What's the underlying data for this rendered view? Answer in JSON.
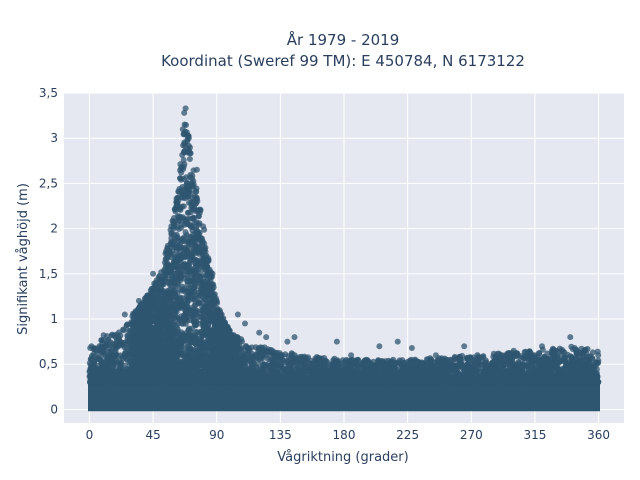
{
  "chart_data": {
    "type": "scatter",
    "title": "År 1979 - 2019",
    "subtitle": "Koordinat (Sweref 99 TM): E 450784, N 6173122",
    "xlabel": "Vågriktning (grader)",
    "ylabel": "Signifikant våghöjd (m)",
    "xlim": [
      -18,
      378
    ],
    "ylim": [
      -0.15,
      3.5
    ],
    "x_ticks": [
      0,
      45,
      90,
      135,
      180,
      225,
      270,
      315,
      360
    ],
    "x_tick_labels": [
      "0",
      "45",
      "90",
      "135",
      "180",
      "225",
      "270",
      "315",
      "360"
    ],
    "y_ticks": [
      0,
      0.5,
      1,
      1.5,
      2,
      2.5,
      3,
      3.5
    ],
    "y_tick_labels": [
      "0",
      "0,5",
      "1",
      "1,5",
      "2",
      "2,5",
      "3",
      "3,5"
    ],
    "grid": true,
    "marker_color": "#2f5670",
    "background_color": "#e5e8f0",
    "envelope": {
      "description_points_x": [
        0,
        10,
        20,
        30,
        40,
        50,
        55,
        60,
        65,
        68,
        70,
        72,
        75,
        80,
        85,
        90,
        95,
        100,
        110,
        120,
        135,
        150,
        180,
        225,
        270,
        315,
        340,
        360
      ],
      "upper_y": [
        0.7,
        0.8,
        0.85,
        1.05,
        1.25,
        1.5,
        1.8,
        2.2,
        2.8,
        3.3,
        3.05,
        2.85,
        2.6,
        2.1,
        1.6,
        1.2,
        1.0,
        0.85,
        0.75,
        0.7,
        0.65,
        0.6,
        0.55,
        0.55,
        0.6,
        0.65,
        0.7,
        0.65
      ]
    },
    "outliers": [
      {
        "x": 68,
        "y": 3.33
      },
      {
        "x": 67,
        "y": 3.28
      },
      {
        "x": 66,
        "y": 3.1
      },
      {
        "x": 76,
        "y": 2.65
      },
      {
        "x": 87,
        "y": 1.5
      },
      {
        "x": 90,
        "y": 1.2
      },
      {
        "x": 105,
        "y": 1.05
      },
      {
        "x": 110,
        "y": 0.95
      },
      {
        "x": 120,
        "y": 0.85
      },
      {
        "x": 125,
        "y": 0.8
      },
      {
        "x": 140,
        "y": 0.75
      },
      {
        "x": 145,
        "y": 0.8
      },
      {
        "x": 175,
        "y": 0.75
      },
      {
        "x": 185,
        "y": 0.6
      },
      {
        "x": 205,
        "y": 0.7
      },
      {
        "x": 218,
        "y": 0.75
      },
      {
        "x": 228,
        "y": 0.68
      },
      {
        "x": 245,
        "y": 0.6
      },
      {
        "x": 265,
        "y": 0.7
      },
      {
        "x": 300,
        "y": 0.65
      },
      {
        "x": 320,
        "y": 0.7
      },
      {
        "x": 340,
        "y": 0.8
      },
      {
        "x": 350,
        "y": 0.65
      },
      {
        "x": 10,
        "y": 0.82
      },
      {
        "x": 25,
        "y": 1.05
      },
      {
        "x": 35,
        "y": 1.2
      },
      {
        "x": 45,
        "y": 1.5
      }
    ]
  }
}
